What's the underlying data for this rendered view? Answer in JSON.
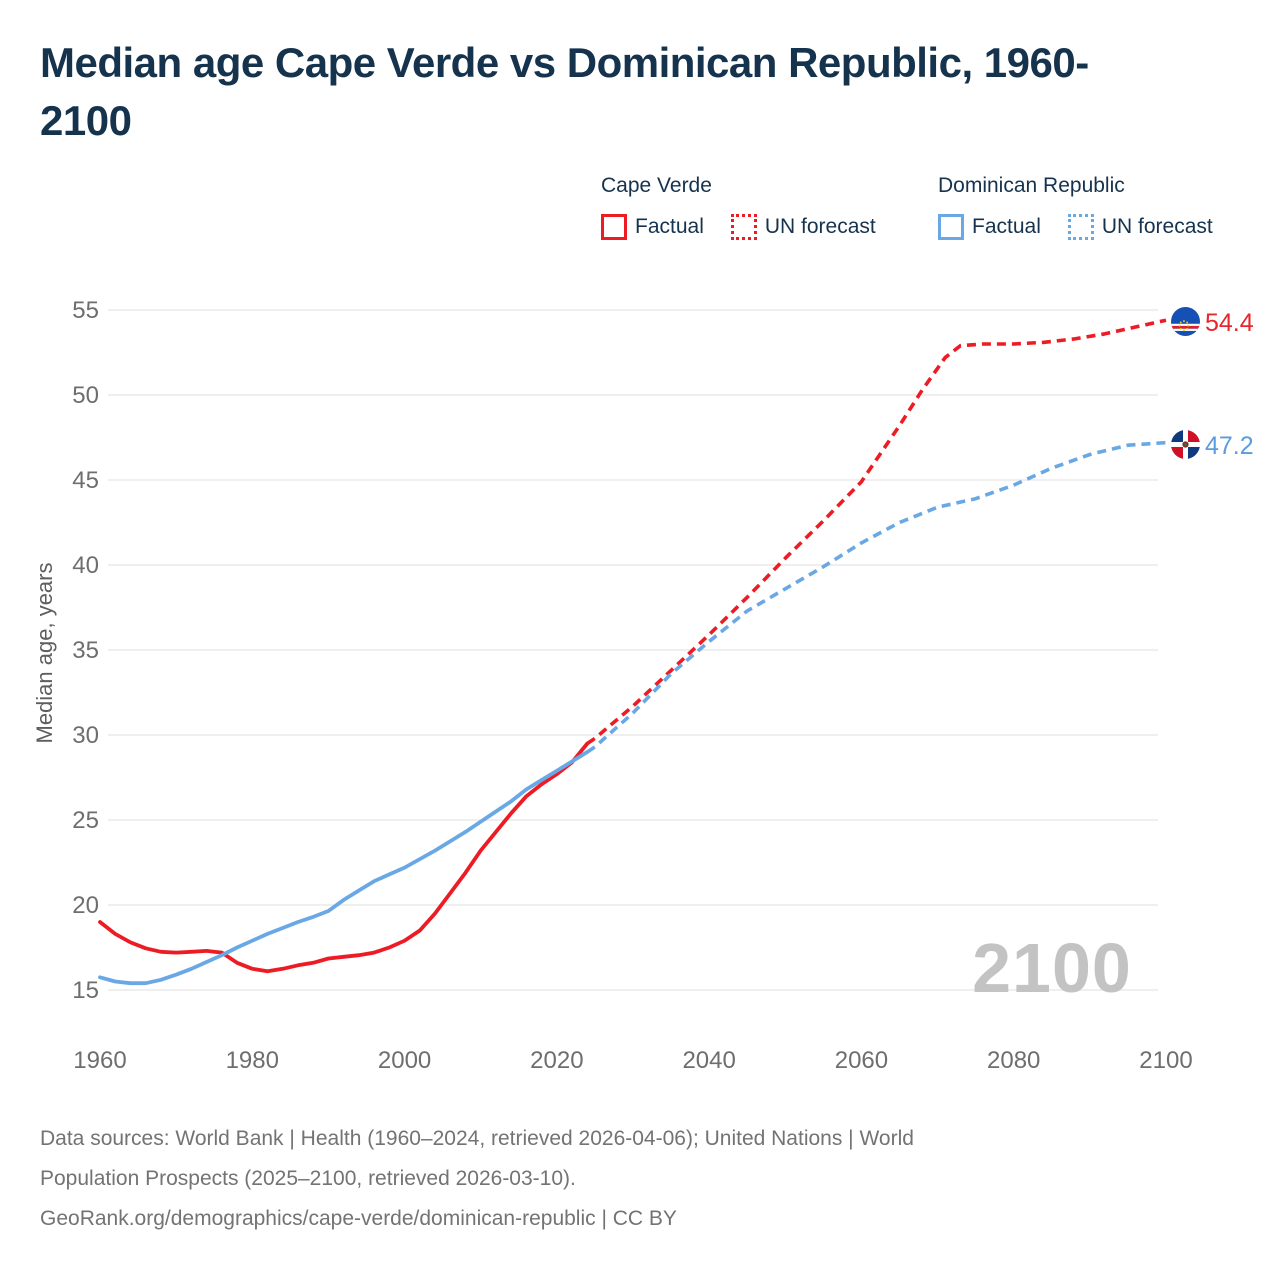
{
  "title_line1": "Median age Cape Verde vs Dominican Republic, 1960-",
  "title_line2": "2100",
  "legend": {
    "group1": {
      "name": "Cape Verde",
      "factual_label": "Factual",
      "forecast_label": "UN forecast",
      "color": "#ed1c24"
    },
    "group2": {
      "name": "Dominican Republic",
      "factual_label": "Factual",
      "forecast_label": "UN forecast",
      "color": "#69a8e5"
    }
  },
  "end_labels": {
    "cape_verde": "54.4",
    "dominican_republic": "47.2"
  },
  "footer": {
    "line1": "Data sources: World Bank | Health (1960–2024, retrieved 2026-04-06); United Nations | World",
    "line2": "Population Prospects (2025–2100, retrieved 2026-03-10).",
    "line3": "GeoRank.org/demographics/cape-verde/dominican-republic | CC BY"
  },
  "chart_data": {
    "type": "line",
    "title": "Median age Cape Verde vs Dominican Republic, 1960-2100",
    "xlabel": "",
    "ylabel": "Median age, years",
    "x_ticks": [
      1960,
      1980,
      2000,
      2020,
      2040,
      2060,
      2080,
      2100
    ],
    "y_ticks": [
      55,
      50,
      45,
      40,
      35,
      30,
      25,
      20,
      15
    ],
    "xlim": [
      1960,
      2100
    ],
    "ylim": [
      15,
      55
    ],
    "grid": true,
    "watermark": "2100",
    "colors": {
      "cape_verde": "#ed1c24",
      "dominican_republic": "#69a8e5",
      "grid": "#eaeaea",
      "axis_text": "#6e6e6e",
      "watermark": "#c3c3c3"
    },
    "series": [
      {
        "name": "Cape Verde — Factual",
        "style": "solid",
        "color": "#ed1c24",
        "points": [
          [
            1960,
            19.0
          ],
          [
            1962,
            18.3
          ],
          [
            1964,
            17.8
          ],
          [
            1966,
            17.45
          ],
          [
            1968,
            17.25
          ],
          [
            1970,
            17.2
          ],
          [
            1972,
            17.25
          ],
          [
            1974,
            17.3
          ],
          [
            1976,
            17.2
          ],
          [
            1978,
            16.6
          ],
          [
            1980,
            16.25
          ],
          [
            1982,
            16.1
          ],
          [
            1984,
            16.25
          ],
          [
            1986,
            16.45
          ],
          [
            1988,
            16.6
          ],
          [
            1990,
            16.85
          ],
          [
            1992,
            16.95
          ],
          [
            1994,
            17.05
          ],
          [
            1996,
            17.2
          ],
          [
            1998,
            17.5
          ],
          [
            2000,
            17.9
          ],
          [
            2002,
            18.5
          ],
          [
            2004,
            19.5
          ],
          [
            2006,
            20.7
          ],
          [
            2008,
            21.9
          ],
          [
            2010,
            23.2
          ],
          [
            2012,
            24.3
          ],
          [
            2014,
            25.4
          ],
          [
            2016,
            26.4
          ],
          [
            2018,
            27.1
          ],
          [
            2020,
            27.7
          ],
          [
            2022,
            28.4
          ],
          [
            2024,
            29.5
          ]
        ]
      },
      {
        "name": "Cape Verde — UN forecast",
        "style": "dashed",
        "color": "#ed1c24",
        "points": [
          [
            2024,
            29.5
          ],
          [
            2025,
            29.8
          ],
          [
            2030,
            31.7
          ],
          [
            2035,
            33.8
          ],
          [
            2040,
            35.9
          ],
          [
            2045,
            38.1
          ],
          [
            2050,
            40.4
          ],
          [
            2055,
            42.6
          ],
          [
            2060,
            44.9
          ],
          [
            2065,
            48.2
          ],
          [
            2068,
            50.3
          ],
          [
            2071,
            52.2
          ],
          [
            2073,
            52.9
          ],
          [
            2076,
            53.0
          ],
          [
            2080,
            53.0
          ],
          [
            2084,
            53.1
          ],
          [
            2088,
            53.3
          ],
          [
            2092,
            53.6
          ],
          [
            2096,
            54.0
          ],
          [
            2100,
            54.4
          ]
        ]
      },
      {
        "name": "Dominican Republic — Factual",
        "style": "solid",
        "color": "#69a8e5",
        "points": [
          [
            1960,
            15.75
          ],
          [
            1962,
            15.5
          ],
          [
            1964,
            15.4
          ],
          [
            1966,
            15.4
          ],
          [
            1968,
            15.6
          ],
          [
            1970,
            15.9
          ],
          [
            1972,
            16.25
          ],
          [
            1974,
            16.65
          ],
          [
            1976,
            17.05
          ],
          [
            1978,
            17.5
          ],
          [
            1980,
            17.9
          ],
          [
            1982,
            18.3
          ],
          [
            1984,
            18.65
          ],
          [
            1986,
            19.0
          ],
          [
            1988,
            19.3
          ],
          [
            1990,
            19.65
          ],
          [
            1992,
            20.3
          ],
          [
            1994,
            20.85
          ],
          [
            1996,
            21.4
          ],
          [
            1998,
            21.8
          ],
          [
            2000,
            22.2
          ],
          [
            2002,
            22.7
          ],
          [
            2004,
            23.2
          ],
          [
            2006,
            23.75
          ],
          [
            2008,
            24.3
          ],
          [
            2010,
            24.9
          ],
          [
            2012,
            25.5
          ],
          [
            2014,
            26.1
          ],
          [
            2016,
            26.8
          ],
          [
            2018,
            27.35
          ],
          [
            2020,
            27.9
          ],
          [
            2022,
            28.45
          ],
          [
            2024,
            29.0
          ]
        ]
      },
      {
        "name": "Dominican Republic — UN forecast",
        "style": "dashed",
        "color": "#69a8e5",
        "points": [
          [
            2024,
            29.0
          ],
          [
            2025,
            29.3
          ],
          [
            2030,
            31.3
          ],
          [
            2035,
            33.6
          ],
          [
            2040,
            35.5
          ],
          [
            2045,
            37.3
          ],
          [
            2050,
            38.6
          ],
          [
            2055,
            39.9
          ],
          [
            2060,
            41.3
          ],
          [
            2065,
            42.5
          ],
          [
            2070,
            43.4
          ],
          [
            2075,
            43.9
          ],
          [
            2080,
            44.7
          ],
          [
            2085,
            45.7
          ],
          [
            2090,
            46.5
          ],
          [
            2095,
            47.05
          ],
          [
            2100,
            47.2
          ]
        ]
      }
    ],
    "end_labels": [
      {
        "series": "Cape Verde",
        "value": 54.4
      },
      {
        "series": "Dominican Republic",
        "value": 47.2
      }
    ],
    "legend_position": "top-right"
  }
}
